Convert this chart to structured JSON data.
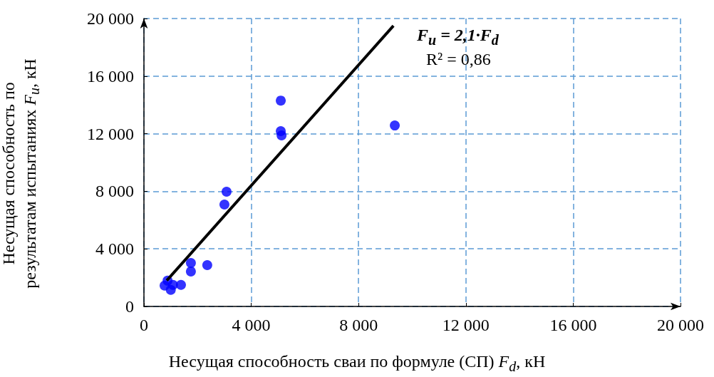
{
  "chart_data": {
    "type": "scatter",
    "xlabel": "Несущая способность сваи по формуле (СП) F$_{d}$, кН",
    "ylabel": "Несущая способность по результатам испытаниях F$_{u}$, кН",
    "annotations": [
      "F$_{u}$ = 2,1·F$_{d}$",
      "R² = 0,86"
    ],
    "series": [
      {
        "marker": "circle",
        "color": "#0000ff",
        "x": [
          770,
          880,
          1000,
          1080,
          1380,
          1750,
          1750,
          2360,
          3000,
          3080,
          5100,
          5100,
          5130,
          9350
        ],
        "values": [
          1450,
          1790,
          1150,
          1500,
          1500,
          3020,
          2430,
          2870,
          7080,
          7970,
          14300,
          12180,
          11880,
          12570
        ]
      },
      {
        "type": "line",
        "marker": "none",
        "line_style": "solid",
        "color": "#000000",
        "x": [
          850,
          9300
        ],
        "values": [
          1800,
          19500
        ]
      }
    ],
    "xlim": [
      0,
      20000
    ],
    "ylim": [
      0,
      20000
    ],
    "xticks": [
      0,
      {
        "value": 4000,
        "label": "4 000"
      },
      {
        "value": 8000,
        "label": "8 000"
      },
      {
        "value": 12000,
        "label": "12 000"
      },
      {
        "value": 16000,
        "label": "16 000"
      },
      {
        "value": 20000,
        "label": "20 000"
      }
    ],
    "yticks": [
      0,
      {
        "value": 4000,
        "label": "4 000"
      },
      {
        "value": 8000,
        "label": "8 000"
      },
      {
        "value": 12000,
        "label": "12 000"
      },
      {
        "value": 16000,
        "label": "16 000"
      },
      {
        "value": 20000,
        "label": "20 000"
      }
    ],
    "grid": true
  }
}
